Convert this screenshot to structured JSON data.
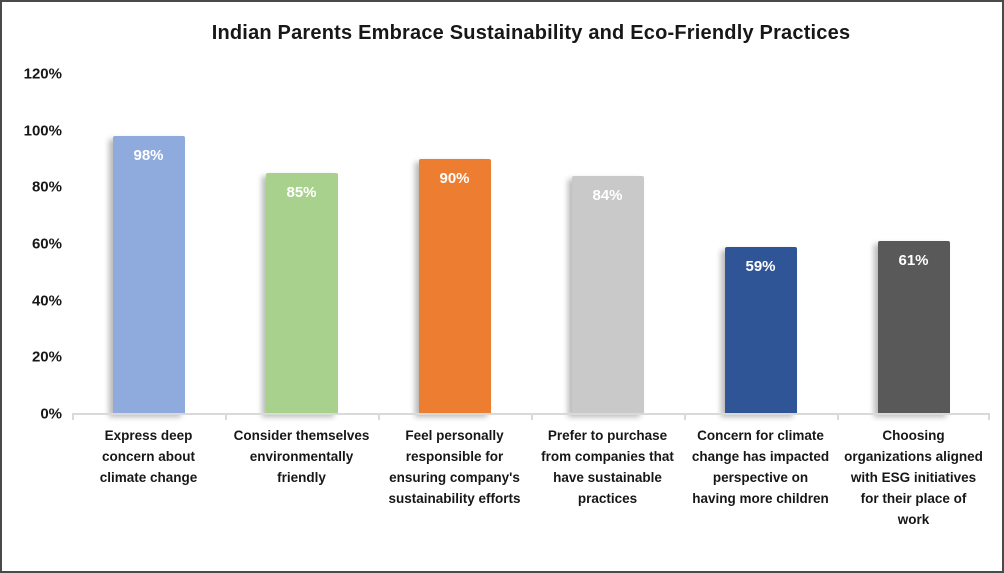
{
  "title": "Indian Parents Embrace Sustainability and Eco-Friendly Practices",
  "chart_data": {
    "type": "bar",
    "title": "Indian Parents Embrace Sustainability and Eco-Friendly Practices",
    "categories": [
      "Express deep concern about climate change",
      "Consider themselves environmentally friendly",
      "Feel personally responsible for ensuring company's sustainability efforts",
      "Prefer to purchase from companies that have sustainable practices",
      "Concern for climate change has impacted perspective on having more children",
      "Choosing organizations aligned with ESG initiatives for their place of work"
    ],
    "values": [
      98,
      85,
      90,
      84,
      59,
      61
    ],
    "data_labels": [
      "98%",
      "85%",
      "90%",
      "84%",
      "59%",
      "61%"
    ],
    "bar_colors": [
      "#8FAADC",
      "#A9D18E",
      "#ED7D31",
      "#C9C9C9",
      "#2F5597",
      "#595959"
    ],
    "data_label_color": "#FFFFFF",
    "xlabel": "",
    "ylabel": "",
    "ylim": [
      0,
      120
    ],
    "yticks": [
      0,
      20,
      40,
      60,
      80,
      100,
      120
    ],
    "ytick_labels": [
      "0%",
      "20%",
      "40%",
      "60%",
      "80%",
      "100%",
      "120%"
    ],
    "grid": false,
    "legend": "none",
    "axis_line_color": "#D9D9D9",
    "background_color": "#FFFFFF"
  }
}
